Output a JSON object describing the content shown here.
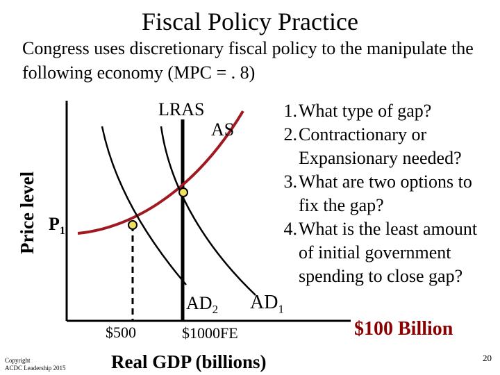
{
  "title": "Fiscal Policy Practice",
  "subtitle": "Congress uses discretionary fiscal policy to the manipulate the following economy (MPC = . 8)",
  "graph": {
    "y_axis_label": "Price level",
    "price_label": "P",
    "price_sub": "1",
    "lras_label": "LRAS",
    "as_label": "AS",
    "ad2_label": "AD",
    "ad2_sub": "2",
    "ad1_label": "AD",
    "ad1_sub": "1",
    "x_tick_1": "$500",
    "x_tick_2": "$1000FE",
    "x_axis_label": "Real GDP (billions)",
    "colors": {
      "as_curve": "#a01820",
      "ad_curves": "#000000",
      "points": "#f0e060"
    }
  },
  "questions": [
    {
      "num": "1.",
      "text": "What type of gap?"
    },
    {
      "num": "2.",
      "text": "Contractionary or Expansionary needed?"
    },
    {
      "num": "3.",
      "text": "What are two options to fix the gap?"
    },
    {
      "num": "4.",
      "text": "What is the least amount of initial government spending to close gap?"
    }
  ],
  "answer": "$100 Billion",
  "copyright": {
    "line1": "Copyright",
    "line2": "ACDC Leadership 2015"
  },
  "page_number": "20"
}
